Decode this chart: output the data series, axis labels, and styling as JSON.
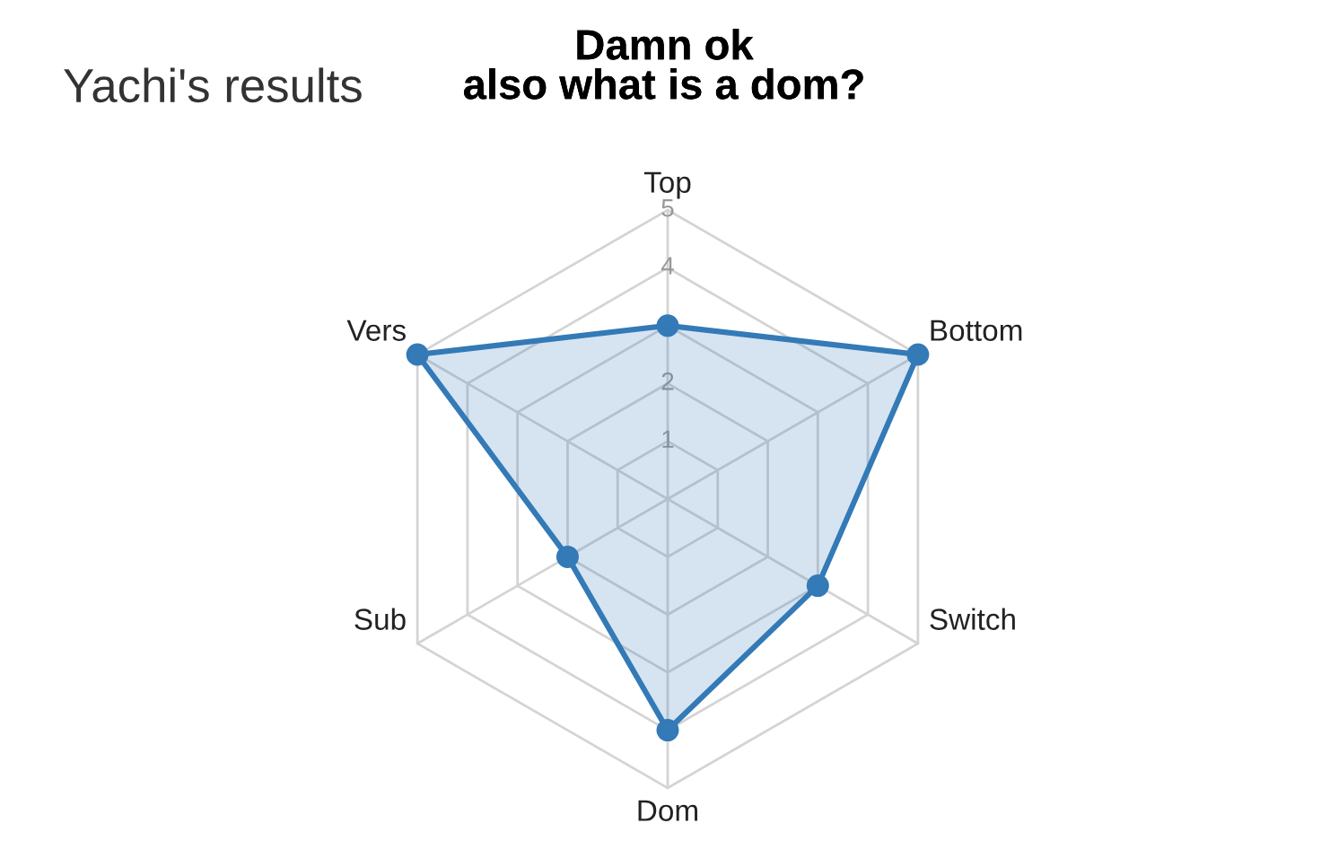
{
  "chart_data": {
    "type": "radar",
    "title": "Yachi's results",
    "categories": [
      "Top",
      "Bottom",
      "Switch",
      "Dom",
      "Sub",
      "Vers"
    ],
    "series": [
      {
        "color": "#337ab7",
        "values": [
          3,
          5,
          3,
          4,
          2,
          5
        ]
      }
    ],
    "ylim": [
      0,
      5
    ],
    "yticks": [
      1,
      2,
      4,
      5
    ],
    "grid": true,
    "marker": "circle",
    "line_style": "solid",
    "annotations": [
      "Damn ok\nalso what is a dom?"
    ]
  }
}
